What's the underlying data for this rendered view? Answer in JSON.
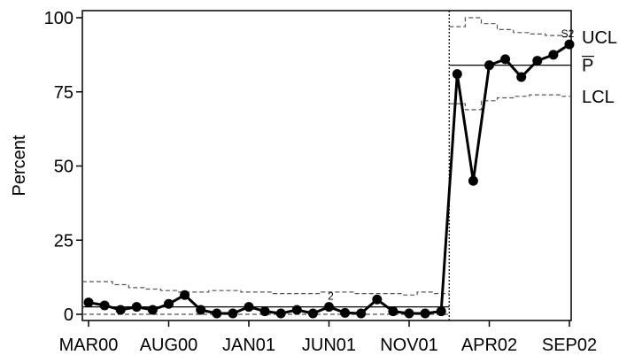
{
  "chart_data": {
    "type": "line",
    "ylabel": "Percent",
    "xlabel": "",
    "ylim": [
      0,
      100
    ],
    "y_ticks": [
      0,
      25,
      50,
      75,
      100
    ],
    "x_tick_labels": [
      {
        "index": 0,
        "label": "MAR00"
      },
      {
        "index": 5,
        "label": "AUG00"
      },
      {
        "index": 10,
        "label": "JAN01"
      },
      {
        "index": 15,
        "label": "JUN01"
      },
      {
        "index": 20,
        "label": "NOV01"
      },
      {
        "index": 25,
        "label": "APR02"
      },
      {
        "index": 30,
        "label": "SEP02"
      }
    ],
    "phase_break_after_index": 22,
    "series": [
      {
        "name": "Percent",
        "values": [
          4,
          3,
          1.5,
          2.5,
          1.5,
          3.5,
          6.5,
          1.5,
          0.3,
          0.3,
          2.5,
          1,
          0.3,
          1.5,
          0.3,
          2.5,
          0.5,
          0.3,
          5,
          1,
          0.3,
          0.3,
          1,
          81,
          45,
          84,
          86,
          80,
          85.5,
          87.5,
          91
        ]
      }
    ],
    "center_lines": [
      {
        "from_index": 0,
        "to_index": 22,
        "value": 2.5
      },
      {
        "from_index": 23,
        "to_index": 30,
        "value": 84
      }
    ],
    "ucl": [
      11,
      11,
      10,
      9,
      8.5,
      8,
      7.5,
      7.5,
      8,
      8,
      7.5,
      7.5,
      7,
      7,
      7,
      7.5,
      7.5,
      7,
      7,
      7,
      6.5,
      7.5,
      7,
      97,
      100,
      98,
      96,
      95,
      94.5,
      94,
      93.5
    ],
    "lcl": [
      0,
      0,
      0,
      0,
      0,
      0,
      0,
      0,
      0,
      0,
      0,
      0,
      0,
      0,
      0,
      0,
      0,
      0,
      0,
      0,
      0,
      0,
      0,
      71,
      69,
      72,
      73,
      73.5,
      74,
      74,
      73.5
    ],
    "annotations": [
      {
        "index": 15,
        "text": "2"
      },
      {
        "index": 30,
        "text": "S2"
      }
    ],
    "side_labels": {
      "ucl": "UCL",
      "center": "P",
      "lcl": "LCL"
    },
    "grid": false,
    "legend": "none"
  }
}
